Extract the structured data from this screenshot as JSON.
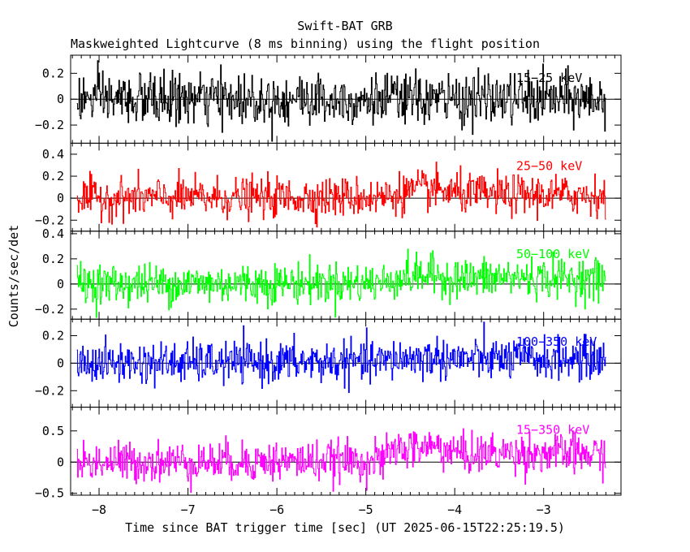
{
  "chart_data": {
    "type": "line",
    "title": "Swift-BAT GRB",
    "subtitle": "Maskweighted Lightcurve (8 ms binning) using the flight position",
    "xlabel": "Time since BAT trigger time [sec] (UT 2025-06-15T22:25:19.5)",
    "ylabel": "Counts/sec/det",
    "xlim": [
      -8.32,
      -2.13
    ],
    "x_ticks": [
      -8,
      -7,
      -6,
      -5,
      -4,
      -3
    ],
    "x_tick_labels": [
      "−8",
      "−7",
      "−6",
      "−5",
      "−4",
      "−3"
    ],
    "time_range": [
      -8.25,
      -2.3
    ],
    "bin_size": 0.008,
    "series": [
      {
        "name": "15−25 keV",
        "color": "#000000",
        "ylim": [
          -0.34,
          0.34
        ],
        "y_ticks": [
          -0.2,
          0,
          0.2
        ],
        "y_tick_labels": [
          "−0.2",
          "0",
          "0.2"
        ],
        "noise_sigma": 0.1,
        "baseline": [
          [
            -8.25,
            0.0
          ],
          [
            -2.3,
            0.0
          ]
        ]
      },
      {
        "name": "25−50 keV",
        "color": "#ff0000",
        "ylim": [
          -0.3,
          0.5
        ],
        "y_ticks": [
          -0.2,
          0,
          0.2,
          0.4
        ],
        "y_tick_labels": [
          "−0.2",
          "0",
          "0.2",
          "0.4"
        ],
        "noise_sigma": 0.09,
        "baseline": [
          [
            -8.25,
            0.0
          ],
          [
            -4.75,
            0.01
          ],
          [
            -4.7,
            0.04
          ],
          [
            -4.3,
            0.08
          ],
          [
            -3.9,
            0.04
          ],
          [
            -3.4,
            0.03
          ],
          [
            -2.3,
            0.03
          ]
        ]
      },
      {
        "name": "50−100 keV",
        "color": "#00ff00",
        "ylim": [
          -0.28,
          0.42
        ],
        "y_ticks": [
          -0.2,
          0,
          0.2,
          0.4
        ],
        "y_tick_labels": [
          "−0.2",
          "0",
          "0.2",
          "0.4"
        ],
        "noise_sigma": 0.08,
        "baseline": [
          [
            -8.25,
            0.0
          ],
          [
            -4.75,
            0.01
          ],
          [
            -4.7,
            0.05
          ],
          [
            -4.3,
            0.07
          ],
          [
            -3.9,
            0.04
          ],
          [
            -3.4,
            0.05
          ],
          [
            -2.3,
            0.04
          ]
        ]
      },
      {
        "name": "100−350 keV",
        "color": "#0000ff",
        "ylim": [
          -0.32,
          0.32
        ],
        "y_ticks": [
          -0.2,
          0,
          0.2
        ],
        "y_tick_labels": [
          "−0.2",
          "0",
          "0.2"
        ],
        "noise_sigma": 0.075,
        "baseline": [
          [
            -8.25,
            0.0
          ],
          [
            -4.75,
            0.01
          ],
          [
            -4.7,
            0.03
          ],
          [
            -4.3,
            0.04
          ],
          [
            -3.9,
            0.03
          ],
          [
            -2.3,
            0.03
          ]
        ]
      },
      {
        "name": "15−350 keV",
        "color": "#ff00ff",
        "ylim": [
          -0.53,
          0.88
        ],
        "y_ticks": [
          -0.5,
          0,
          0.5
        ],
        "y_tick_labels": [
          "−0.5",
          "0",
          "0.5"
        ],
        "noise_sigma": 0.16,
        "baseline": [
          [
            -8.25,
            0.0
          ],
          [
            -4.8,
            0.02
          ],
          [
            -4.7,
            0.2
          ],
          [
            -4.2,
            0.25
          ],
          [
            -3.9,
            0.12
          ],
          [
            -3.4,
            0.15
          ],
          [
            -2.3,
            0.12
          ]
        ]
      }
    ]
  }
}
